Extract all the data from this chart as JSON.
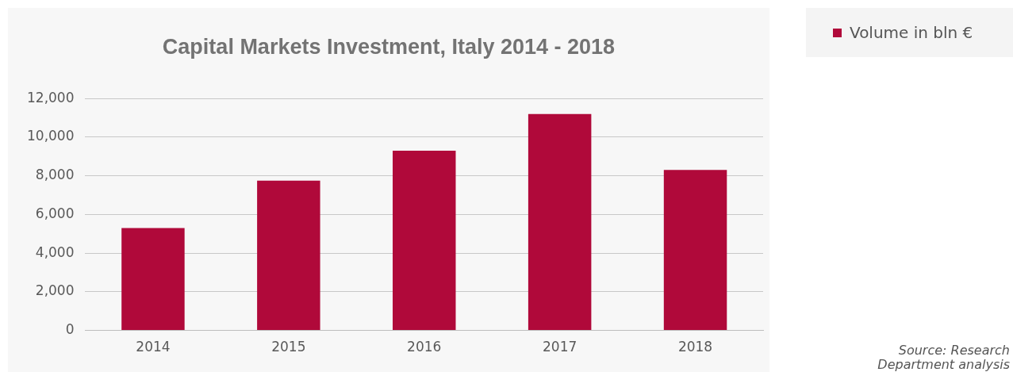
{
  "chart_data": {
    "type": "bar",
    "title": "Capital Markets Investment, Italy 2014 - 2018",
    "categories": [
      "2014",
      "2015",
      "2016",
      "2017",
      "2018"
    ],
    "series": [
      {
        "name": "Volume in bln €",
        "color": "#b0093a",
        "values": [
          5300,
          7750,
          9300,
          11200,
          8300
        ]
      }
    ],
    "ylim": [
      0,
      12000
    ],
    "yticks": [
      {
        "value": 0,
        "label": "0"
      },
      {
        "value": 2000,
        "label": "2,000"
      },
      {
        "value": 4000,
        "label": "4,000"
      },
      {
        "value": 6000,
        "label": "6,000"
      },
      {
        "value": 8000,
        "label": "8,000"
      },
      {
        "value": 10000,
        "label": "10,000"
      },
      {
        "value": 12000,
        "label": "12,000"
      }
    ],
    "grid": "y",
    "legend": "top right",
    "annotations": [
      "Source: Research Department analysis"
    ]
  }
}
